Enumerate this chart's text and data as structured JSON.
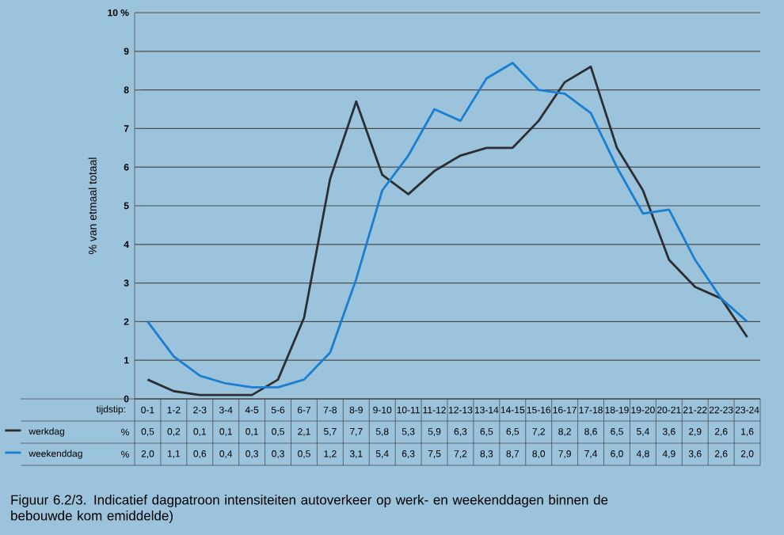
{
  "chart_data": {
    "type": "line",
    "title": "Figuur 6.2/3. Indicatief dagpatroon intensiteiten autoverkeer op werk- en weekenddagen binnen de bebouwde kom emiddelde)",
    "xlabel": "tijdstip:",
    "ylabel": "% van etmaal totaal",
    "annotations": [
      "%"
    ],
    "categories": [
      "0-1",
      "1-2",
      "2-3",
      "3-4",
      "4-5",
      "5-6",
      "6-7",
      "7-8",
      "8-9",
      "9-10",
      "10-11",
      "11-12",
      "12-13",
      "13-14",
      "14-15",
      "15-16",
      "16-17",
      "17-18",
      "18-19",
      "19-20",
      "20-21",
      "21-22",
      "22-23",
      "23-24"
    ],
    "series": [
      {
        "name": "werkdag",
        "color": "#2b2f33",
        "values": [
          0.5,
          0.2,
          0.1,
          0.1,
          0.1,
          0.5,
          2.1,
          5.7,
          7.7,
          5.8,
          5.3,
          5.9,
          6.3,
          6.5,
          6.5,
          7.2,
          8.2,
          8.6,
          6.5,
          5.4,
          3.6,
          2.9,
          2.6,
          1.6
        ],
        "value_labels": [
          "0,5",
          "0,2",
          "0,1",
          "0,1",
          "0,1",
          "0,5",
          "2,1",
          "5,7",
          "7,7",
          "5,8",
          "5,3",
          "5,9",
          "6,3",
          "6,5",
          "6,5",
          "7,2",
          "8,2",
          "8,6",
          "6,5",
          "5,4",
          "3,6",
          "2,9",
          "2,6",
          "1,6"
        ]
      },
      {
        "name": "weekenddag",
        "color": "#1a7fd0",
        "values": [
          2.0,
          1.1,
          0.6,
          0.4,
          0.3,
          0.3,
          0.5,
          1.2,
          3.1,
          5.4,
          6.3,
          7.5,
          7.2,
          8.3,
          8.7,
          8.0,
          7.9,
          7.4,
          6.0,
          4.8,
          4.9,
          3.6,
          2.6,
          2.0
        ],
        "value_labels": [
          "2,0",
          "1,1",
          "0,6",
          "0,4",
          "0,3",
          "0,3",
          "0,5",
          "1,2",
          "3,1",
          "5,4",
          "6,3",
          "7,5",
          "7,2",
          "8,3",
          "8,7",
          "8,0",
          "7,9",
          "7,4",
          "6,0",
          "4,8",
          "4,9",
          "3,6",
          "2,6",
          "2,0"
        ]
      }
    ],
    "ylim": [
      0,
      10
    ],
    "yticks": [
      0,
      1,
      2,
      3,
      4,
      5,
      6,
      7,
      8,
      9,
      {
        "value": 10,
        "label": "10 %"
      }
    ],
    "grid": "y",
    "legend": "bottom",
    "marker": "none",
    "line_style": "solid"
  }
}
